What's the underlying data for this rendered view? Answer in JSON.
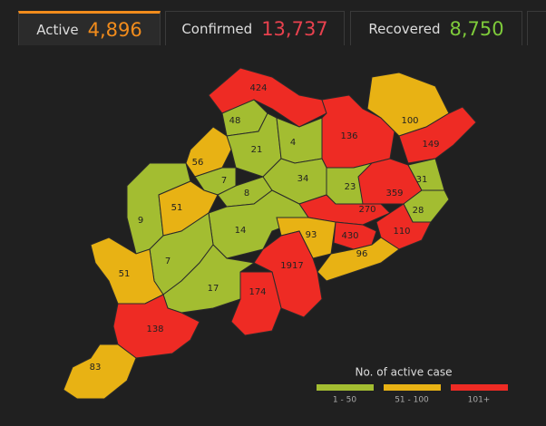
{
  "tabs": [
    {
      "label": "Active",
      "value": "4,896",
      "color": "#f28c1c"
    },
    {
      "label": "Confirmed",
      "value": "13,737",
      "color": "#e8414e"
    },
    {
      "label": "Recovered",
      "value": "8,750",
      "color": "#7ecb3a"
    }
  ],
  "districts": [
    {
      "label": "424",
      "color": "#ee2b24"
    },
    {
      "label": "48",
      "color": "#a3bd31"
    },
    {
      "label": "21",
      "color": "#a3bd31"
    },
    {
      "label": "4",
      "color": "#a3bd31"
    },
    {
      "label": "136",
      "color": "#ee2b24"
    },
    {
      "label": "100",
      "color": "#e8b214"
    },
    {
      "label": "149",
      "color": "#ee2b24"
    },
    {
      "label": "56",
      "color": "#e8b214"
    },
    {
      "label": "7",
      "color": "#a3bd31"
    },
    {
      "label": "8",
      "color": "#a3bd31"
    },
    {
      "label": "34",
      "color": "#a3bd31"
    },
    {
      "label": "23",
      "color": "#a3bd31"
    },
    {
      "label": "359",
      "color": "#ee2b24"
    },
    {
      "label": "31",
      "color": "#a3bd31"
    },
    {
      "label": "28",
      "color": "#a3bd31"
    },
    {
      "label": "9",
      "color": "#a3bd31"
    },
    {
      "label": "51",
      "color": "#e8b214"
    },
    {
      "label": "270",
      "color": "#ee2b24"
    },
    {
      "label": "14",
      "color": "#a3bd31"
    },
    {
      "label": "93",
      "color": "#e8b214"
    },
    {
      "label": "430",
      "color": "#ee2b24"
    },
    {
      "label": "110",
      "color": "#ee2b24"
    },
    {
      "label": "96",
      "color": "#e8b214"
    },
    {
      "label": "7",
      "color": "#a3bd31"
    },
    {
      "label": "51",
      "color": "#e8b214"
    },
    {
      "label": "1917",
      "color": "#ee2b24"
    },
    {
      "label": "174",
      "color": "#ee2b24"
    },
    {
      "label": "17",
      "color": "#a3bd31"
    },
    {
      "label": "138",
      "color": "#ee2b24"
    },
    {
      "label": "83",
      "color": "#e8b214"
    }
  ],
  "legend": {
    "title": "No. of active case",
    "items": [
      {
        "label": "1 - 50",
        "color": "#a3bd31"
      },
      {
        "label": "51 - 100",
        "color": "#e8b214"
      },
      {
        "label": "101+",
        "color": "#ee2b24"
      }
    ]
  }
}
